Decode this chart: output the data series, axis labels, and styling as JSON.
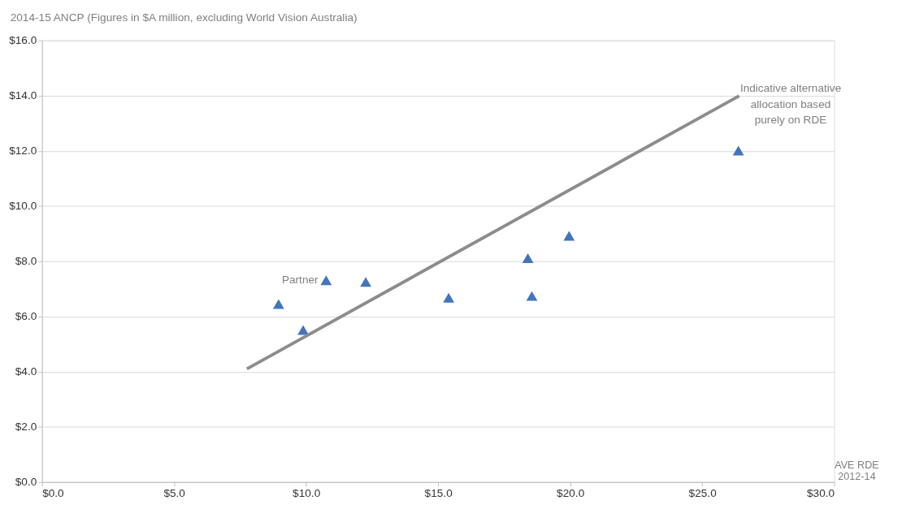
{
  "chart_data": {
    "type": "scatter",
    "title": "2014-15 ANCP (Figures in $A million, excluding World Vision Australia)",
    "xlabel": "AVE RDE 2012-14",
    "series": [
      {
        "color": "#4275bb",
        "marker": "triangle",
        "x": [
          8.96,
          9.89,
          10.76,
          12.26,
          15.4,
          18.4,
          18.55,
          19.96,
          26.37
        ],
        "values": [
          6.45,
          5.51,
          7.31,
          7.25,
          6.68,
          8.11,
          6.74,
          8.92,
          12.01
        ]
      },
      {
        "type": "line",
        "color": "#8c8c8c",
        "marker": "none",
        "line_style": "solid",
        "x": [
          7.76,
          26.4
        ],
        "values": [
          4.1,
          13.99
        ]
      }
    ],
    "annotations": [
      {
        "text": "Partner",
        "x": 10.76,
        "y": 7.31
      },
      {
        "text": "Indicative alternative allocation based purely on RDE",
        "x": 26.4,
        "y": 13.99
      }
    ],
    "xlim": [
      0,
      30
    ],
    "xticks": [
      {
        "value": 0,
        "label": "$0.0"
      },
      {
        "value": 5,
        "label": "$5.0"
      },
      {
        "value": 10,
        "label": "$10.0"
      },
      {
        "value": 15,
        "label": "$15.0"
      },
      {
        "value": 20,
        "label": "$20.0"
      },
      {
        "value": 25,
        "label": "$25.0"
      },
      {
        "value": 30,
        "label": "$30.0"
      }
    ],
    "ylim": [
      0,
      16
    ],
    "yticks": [
      {
        "value": 0,
        "label": "$0.0"
      },
      {
        "value": 2,
        "label": "$2.0"
      },
      {
        "value": 4,
        "label": "$4.0"
      },
      {
        "value": 6,
        "label": "$6.0"
      },
      {
        "value": 8,
        "label": "$8.0"
      },
      {
        "value": 10,
        "label": "$10.0"
      },
      {
        "value": 12,
        "label": "$12.0"
      },
      {
        "value": 14,
        "label": "$14.0"
      },
      {
        "value": 16,
        "label": "$16.0"
      }
    ],
    "grid": "y"
  }
}
